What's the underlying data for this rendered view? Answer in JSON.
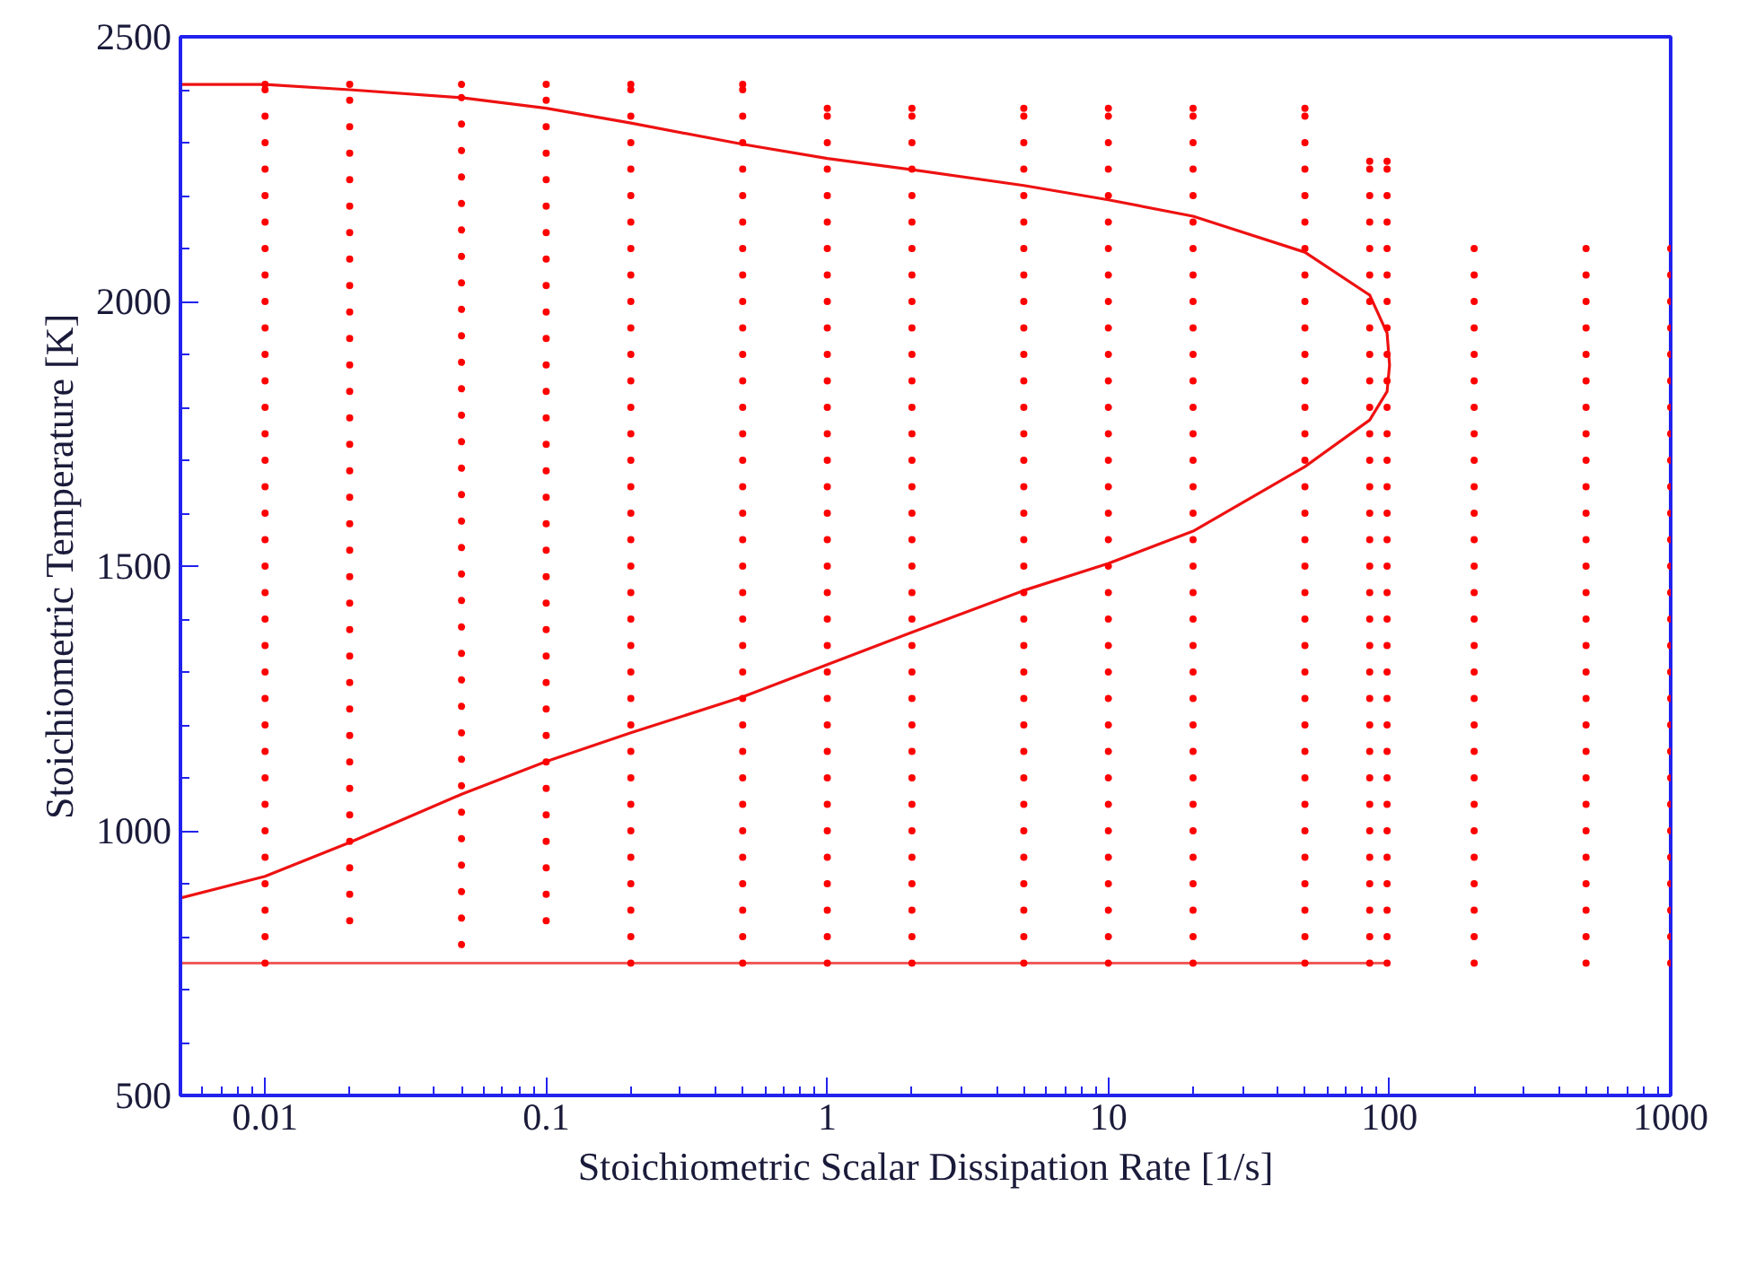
{
  "chart_data": {
    "type": "line",
    "xlabel": "Stoichiometric Scalar Dissipation Rate [1/s]",
    "ylabel": "Stoichiometric Temperature [K]",
    "log": "x",
    "xlim": [
      0.005,
      1000
    ],
    "ylim": [
      500,
      2500
    ],
    "xticks": [
      0.01,
      0.1,
      1,
      10,
      100,
      1000
    ],
    "yticks": [
      500,
      1000,
      1500,
      2000,
      2500
    ],
    "grid": false,
    "series": [
      {
        "color": "#ee1111",
        "line_style": "solid",
        "x": [
          0.005,
          0.01,
          0.02,
          0.05,
          0.1,
          0.2,
          0.5,
          1,
          2,
          5,
          10,
          20,
          50,
          85,
          98,
          100,
          98,
          85,
          50,
          20,
          10,
          5,
          2,
          1,
          0.5,
          0.2,
          0.1,
          0.05,
          0.02,
          0.01,
          0.005
        ],
        "values": [
          2410,
          2410,
          2400,
          2385,
          2365,
          2337,
          2297,
          2270,
          2249,
          2219,
          2192,
          2161,
          2093,
          2012,
          1940,
          1880,
          1830,
          1776,
          1688,
          1566,
          1505,
          1454,
          1375,
          1314,
          1253,
          1185,
          1131,
          1069,
          978,
          914,
          873
        ]
      },
      {
        "color": "#f05a5a",
        "line_style": "solid",
        "x": [
          0.005,
          100
        ],
        "values": [
          750,
          750
        ]
      },
      {
        "type": "scatter",
        "marker": "circle",
        "color": "#ff0000",
        "x": [
          0.01,
          0.01,
          0.01,
          0.01,
          0.01,
          0.01,
          0.01,
          0.01,
          0.01,
          0.01,
          0.01,
          0.01,
          0.01,
          0.01,
          0.01,
          0.01,
          0.01,
          0.01,
          0.01,
          0.01,
          0.01,
          0.01,
          0.01,
          0.01,
          0.01,
          0.01,
          0.01,
          0.01,
          0.01,
          0.01,
          0.01,
          0.01,
          0.01,
          0.01,
          0.01
        ],
        "values": [
          750,
          800,
          850,
          900,
          950,
          1000,
          1050,
          1100,
          1150,
          1200,
          1250,
          1300,
          1350,
          1400,
          1450,
          1500,
          1550,
          1600,
          1650,
          1700,
          1750,
          1800,
          1850,
          1900,
          1950,
          2000,
          2050,
          2100,
          2150,
          2200,
          2250,
          2300,
          2350,
          2400,
          2410
        ]
      },
      {
        "type": "scatter",
        "marker": "circle",
        "color": "#ff0000",
        "x": [
          0.02,
          0.02,
          0.02,
          0.02,
          0.02,
          0.02,
          0.02,
          0.02,
          0.02,
          0.02,
          0.02,
          0.02,
          0.02,
          0.02,
          0.02,
          0.02,
          0.02,
          0.02,
          0.02,
          0.02,
          0.02,
          0.02,
          0.02,
          0.02,
          0.02,
          0.02,
          0.02,
          0.02,
          0.02,
          0.02,
          0.02,
          0.02,
          0.02
        ],
        "values": [
          830,
          880,
          930,
          980,
          1030,
          1080,
          1130,
          1180,
          1230,
          1280,
          1330,
          1380,
          1430,
          1480,
          1530,
          1580,
          1630,
          1680,
          1730,
          1780,
          1830,
          1880,
          1930,
          1980,
          2030,
          2080,
          2130,
          2180,
          2230,
          2280,
          2330,
          2380,
          2410
        ]
      },
      {
        "type": "scatter",
        "marker": "circle",
        "color": "#ff0000",
        "x": [
          0.05,
          0.05,
          0.05,
          0.05,
          0.05,
          0.05,
          0.05,
          0.05,
          0.05,
          0.05,
          0.05,
          0.05,
          0.05,
          0.05,
          0.05,
          0.05,
          0.05,
          0.05,
          0.05,
          0.05,
          0.05,
          0.05,
          0.05,
          0.05,
          0.05,
          0.05,
          0.05,
          0.05,
          0.05,
          0.05,
          0.05,
          0.05,
          0.05,
          0.05
        ],
        "values": [
          785,
          835,
          885,
          935,
          985,
          1035,
          1085,
          1135,
          1185,
          1235,
          1285,
          1335,
          1385,
          1435,
          1485,
          1535,
          1585,
          1635,
          1685,
          1735,
          1785,
          1835,
          1885,
          1935,
          1985,
          2035,
          2085,
          2135,
          2185,
          2235,
          2285,
          2335,
          2385,
          2410
        ]
      },
      {
        "type": "scatter",
        "marker": "circle",
        "color": "#ff0000",
        "x": [
          0.1,
          0.1,
          0.1,
          0.1,
          0.1,
          0.1,
          0.1,
          0.1,
          0.1,
          0.1,
          0.1,
          0.1,
          0.1,
          0.1,
          0.1,
          0.1,
          0.1,
          0.1,
          0.1,
          0.1,
          0.1,
          0.1,
          0.1,
          0.1,
          0.1,
          0.1,
          0.1,
          0.1,
          0.1,
          0.1,
          0.1,
          0.1,
          0.1
        ],
        "values": [
          830,
          880,
          930,
          980,
          1030,
          1080,
          1130,
          1180,
          1230,
          1280,
          1330,
          1380,
          1430,
          1480,
          1530,
          1580,
          1630,
          1680,
          1730,
          1780,
          1830,
          1880,
          1930,
          1980,
          2030,
          2080,
          2130,
          2180,
          2230,
          2280,
          2330,
          2380,
          2410
        ]
      },
      {
        "type": "scatter",
        "marker": "circle",
        "color": "#ff0000",
        "x": [
          0.2,
          0.2,
          0.2,
          0.2,
          0.2,
          0.2,
          0.2,
          0.2,
          0.2,
          0.2,
          0.2,
          0.2,
          0.2,
          0.2,
          0.2,
          0.2,
          0.2,
          0.2,
          0.2,
          0.2,
          0.2,
          0.2,
          0.2,
          0.2,
          0.2,
          0.2,
          0.2,
          0.2,
          0.2,
          0.2,
          0.2,
          0.2,
          0.2,
          0.2,
          0.2
        ],
        "values": [
          750,
          800,
          850,
          900,
          950,
          1000,
          1050,
          1100,
          1150,
          1200,
          1250,
          1300,
          1350,
          1400,
          1450,
          1500,
          1550,
          1600,
          1650,
          1700,
          1750,
          1800,
          1850,
          1900,
          1950,
          2000,
          2050,
          2100,
          2150,
          2200,
          2250,
          2300,
          2350,
          2400,
          2410
        ]
      },
      {
        "type": "scatter",
        "marker": "circle",
        "color": "#ff0000",
        "x": [
          0.5,
          0.5,
          0.5,
          0.5,
          0.5,
          0.5,
          0.5,
          0.5,
          0.5,
          0.5,
          0.5,
          0.5,
          0.5,
          0.5,
          0.5,
          0.5,
          0.5,
          0.5,
          0.5,
          0.5,
          0.5,
          0.5,
          0.5,
          0.5,
          0.5,
          0.5,
          0.5,
          0.5,
          0.5,
          0.5,
          0.5,
          0.5,
          0.5,
          0.5,
          0.5
        ],
        "values": [
          750,
          800,
          850,
          900,
          950,
          1000,
          1050,
          1100,
          1150,
          1200,
          1250,
          1300,
          1350,
          1400,
          1450,
          1500,
          1550,
          1600,
          1650,
          1700,
          1750,
          1800,
          1850,
          1900,
          1950,
          2000,
          2050,
          2100,
          2150,
          2200,
          2250,
          2300,
          2350,
          2400,
          2410
        ]
      },
      {
        "type": "scatter",
        "marker": "circle",
        "color": "#ff0000",
        "x": [
          1,
          1,
          1,
          1,
          1,
          1,
          1,
          1,
          1,
          1,
          1,
          1,
          1,
          1,
          1,
          1,
          1,
          1,
          1,
          1,
          1,
          1,
          1,
          1,
          1,
          1,
          1,
          1,
          1,
          1,
          1,
          1,
          1,
          1
        ],
        "values": [
          750,
          800,
          850,
          900,
          950,
          1000,
          1050,
          1100,
          1150,
          1200,
          1250,
          1300,
          1350,
          1400,
          1450,
          1500,
          1550,
          1600,
          1650,
          1700,
          1750,
          1800,
          1850,
          1900,
          1950,
          2000,
          2050,
          2100,
          2150,
          2200,
          2250,
          2300,
          2350,
          2365
        ]
      },
      {
        "type": "scatter",
        "marker": "circle",
        "color": "#ff0000",
        "x": [
          2,
          2,
          2,
          2,
          2,
          2,
          2,
          2,
          2,
          2,
          2,
          2,
          2,
          2,
          2,
          2,
          2,
          2,
          2,
          2,
          2,
          2,
          2,
          2,
          2,
          2,
          2,
          2,
          2,
          2,
          2,
          2,
          2,
          2
        ],
        "values": [
          750,
          800,
          850,
          900,
          950,
          1000,
          1050,
          1100,
          1150,
          1200,
          1250,
          1300,
          1350,
          1400,
          1450,
          1500,
          1550,
          1600,
          1650,
          1700,
          1750,
          1800,
          1850,
          1900,
          1950,
          2000,
          2050,
          2100,
          2150,
          2200,
          2250,
          2300,
          2350,
          2365
        ]
      },
      {
        "type": "scatter",
        "marker": "circle",
        "color": "#ff0000",
        "x": [
          5,
          5,
          5,
          5,
          5,
          5,
          5,
          5,
          5,
          5,
          5,
          5,
          5,
          5,
          5,
          5,
          5,
          5,
          5,
          5,
          5,
          5,
          5,
          5,
          5,
          5,
          5,
          5,
          5,
          5,
          5,
          5,
          5,
          5
        ],
        "values": [
          750,
          800,
          850,
          900,
          950,
          1000,
          1050,
          1100,
          1150,
          1200,
          1250,
          1300,
          1350,
          1400,
          1450,
          1500,
          1550,
          1600,
          1650,
          1700,
          1750,
          1800,
          1850,
          1900,
          1950,
          2000,
          2050,
          2100,
          2150,
          2200,
          2250,
          2300,
          2350,
          2365
        ]
      },
      {
        "type": "scatter",
        "marker": "circle",
        "color": "#ff0000",
        "x": [
          10,
          10,
          10,
          10,
          10,
          10,
          10,
          10,
          10,
          10,
          10,
          10,
          10,
          10,
          10,
          10,
          10,
          10,
          10,
          10,
          10,
          10,
          10,
          10,
          10,
          10,
          10,
          10,
          10,
          10,
          10,
          10,
          10,
          10
        ],
        "values": [
          750,
          800,
          850,
          900,
          950,
          1000,
          1050,
          1100,
          1150,
          1200,
          1250,
          1300,
          1350,
          1400,
          1450,
          1500,
          1550,
          1600,
          1650,
          1700,
          1750,
          1800,
          1850,
          1900,
          1950,
          2000,
          2050,
          2100,
          2150,
          2200,
          2250,
          2300,
          2350,
          2365
        ]
      },
      {
        "type": "scatter",
        "marker": "circle",
        "color": "#ff0000",
        "x": [
          20,
          20,
          20,
          20,
          20,
          20,
          20,
          20,
          20,
          20,
          20,
          20,
          20,
          20,
          20,
          20,
          20,
          20,
          20,
          20,
          20,
          20,
          20,
          20,
          20,
          20,
          20,
          20,
          20,
          20,
          20,
          20,
          20,
          20
        ],
        "values": [
          750,
          800,
          850,
          900,
          950,
          1000,
          1050,
          1100,
          1150,
          1200,
          1250,
          1300,
          1350,
          1400,
          1450,
          1500,
          1550,
          1600,
          1650,
          1700,
          1750,
          1800,
          1850,
          1900,
          1950,
          2000,
          2050,
          2100,
          2150,
          2200,
          2250,
          2300,
          2350,
          2365
        ]
      },
      {
        "type": "scatter",
        "marker": "circle",
        "color": "#ff0000",
        "x": [
          50,
          50,
          50,
          50,
          50,
          50,
          50,
          50,
          50,
          50,
          50,
          50,
          50,
          50,
          50,
          50,
          50,
          50,
          50,
          50,
          50,
          50,
          50,
          50,
          50,
          50,
          50,
          50,
          50,
          50,
          50,
          50,
          50,
          50
        ],
        "values": [
          750,
          800,
          850,
          900,
          950,
          1000,
          1050,
          1100,
          1150,
          1200,
          1250,
          1300,
          1350,
          1400,
          1450,
          1500,
          1550,
          1600,
          1650,
          1700,
          1750,
          1800,
          1850,
          1900,
          1950,
          2000,
          2050,
          2100,
          2150,
          2200,
          2250,
          2300,
          2350,
          2365
        ]
      },
      {
        "type": "scatter",
        "marker": "circle",
        "color": "#ff0000",
        "x": [
          85,
          85,
          85,
          85,
          85,
          85,
          85,
          85,
          85,
          85,
          85,
          85,
          85,
          85,
          85,
          85,
          85,
          85,
          85,
          85,
          85,
          85,
          85,
          85,
          85,
          85,
          85,
          85,
          85,
          85,
          85,
          85
        ],
        "values": [
          750,
          800,
          850,
          900,
          950,
          1000,
          1050,
          1100,
          1150,
          1200,
          1250,
          1300,
          1350,
          1400,
          1450,
          1500,
          1550,
          1600,
          1650,
          1700,
          1750,
          1800,
          1850,
          1900,
          1950,
          2000,
          2050,
          2100,
          2150,
          2200,
          2250,
          2265
        ]
      },
      {
        "type": "scatter",
        "marker": "circle",
        "color": "#ff0000",
        "x": [
          98,
          98,
          98,
          98,
          98,
          98,
          98,
          98,
          98,
          98,
          98,
          98,
          98,
          98,
          98,
          98,
          98,
          98,
          98,
          98,
          98,
          98,
          98,
          98,
          98,
          98,
          98,
          98,
          98,
          98,
          98,
          98
        ],
        "values": [
          750,
          800,
          850,
          900,
          950,
          1000,
          1050,
          1100,
          1150,
          1200,
          1250,
          1300,
          1350,
          1400,
          1450,
          1500,
          1550,
          1600,
          1650,
          1700,
          1750,
          1800,
          1850,
          1900,
          1950,
          2000,
          2050,
          2100,
          2150,
          2200,
          2250,
          2265
        ]
      },
      {
        "type": "scatter",
        "marker": "circle",
        "color": "#ff0000",
        "x": [
          200,
          200,
          200,
          200,
          200,
          200,
          200,
          200,
          200,
          200,
          200,
          200,
          200,
          200,
          200,
          200,
          200,
          200,
          200,
          200,
          200,
          200,
          200,
          200,
          200,
          200,
          200,
          200
        ],
        "values": [
          750,
          800,
          850,
          900,
          950,
          1000,
          1050,
          1100,
          1150,
          1200,
          1250,
          1300,
          1350,
          1400,
          1450,
          1500,
          1550,
          1600,
          1650,
          1700,
          1750,
          1800,
          1850,
          1900,
          1950,
          2000,
          2050,
          2100
        ]
      },
      {
        "type": "scatter",
        "marker": "circle",
        "color": "#ff0000",
        "x": [
          500,
          500,
          500,
          500,
          500,
          500,
          500,
          500,
          500,
          500,
          500,
          500,
          500,
          500,
          500,
          500,
          500,
          500,
          500,
          500,
          500,
          500,
          500,
          500,
          500,
          500,
          500,
          500
        ],
        "values": [
          750,
          800,
          850,
          900,
          950,
          1000,
          1050,
          1100,
          1150,
          1200,
          1250,
          1300,
          1350,
          1400,
          1450,
          1500,
          1550,
          1600,
          1650,
          1700,
          1750,
          1800,
          1850,
          1900,
          1950,
          2000,
          2050,
          2100
        ]
      },
      {
        "type": "scatter",
        "marker": "circle",
        "color": "#ff0000",
        "x": [
          1000,
          1000,
          1000,
          1000,
          1000,
          1000,
          1000,
          1000,
          1000,
          1000,
          1000,
          1000,
          1000,
          1000,
          1000,
          1000,
          1000,
          1000,
          1000,
          1000,
          1000,
          1000,
          1000,
          1000,
          1000,
          1000,
          1000,
          1000
        ],
        "values": [
          750,
          800,
          850,
          900,
          950,
          1000,
          1050,
          1100,
          1150,
          1200,
          1250,
          1300,
          1350,
          1400,
          1450,
          1500,
          1550,
          1600,
          1650,
          1700,
          1750,
          1800,
          1850,
          1900,
          1950,
          2000,
          2050,
          2100
        ]
      }
    ]
  }
}
